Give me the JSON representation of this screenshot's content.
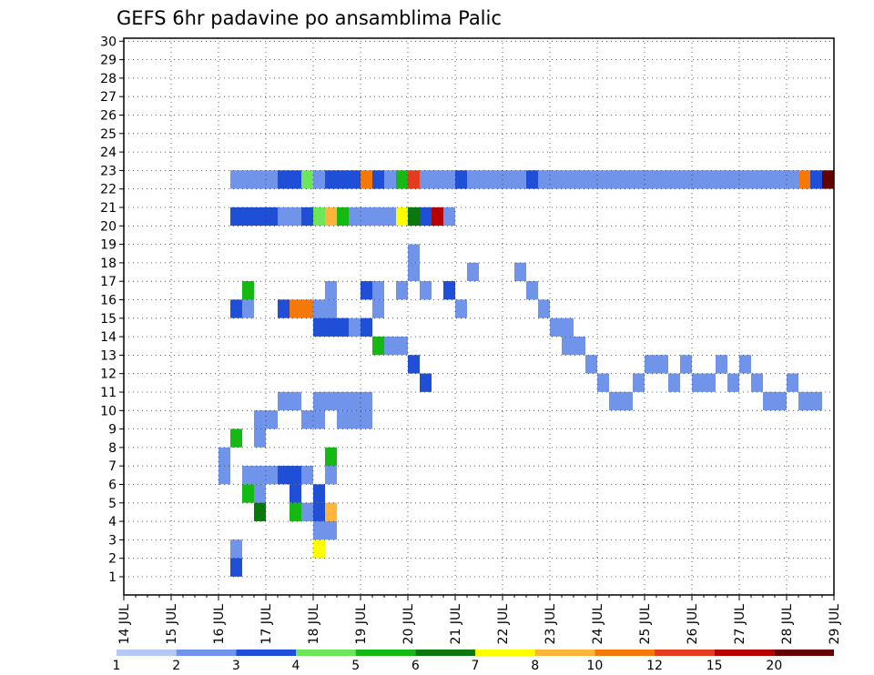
{
  "chart_data": {
    "type": "heatmap",
    "title": "GEFS 6hr padavine po ansamblima Palic",
    "x_ticks": [
      "14 JUL",
      "15 JUL",
      "16 JUL",
      "17 JUL",
      "18 JUL",
      "19 JUL",
      "20 JUL",
      "21 JUL",
      "22 JUL",
      "23 JUL",
      "24 JUL",
      "25 JUL",
      "26 JUL",
      "27 JUL",
      "28 JUL",
      "29 JUL"
    ],
    "y_ticks": [
      "1",
      "2",
      "3",
      "4",
      "5",
      "6",
      "7",
      "8",
      "9",
      "10",
      "11",
      "12",
      "13",
      "14",
      "15",
      "16",
      "17",
      "18",
      "19",
      "20",
      "21",
      "22",
      "23",
      "24",
      "25",
      "26",
      "27",
      "28",
      "29",
      "30"
    ],
    "colorbar": {
      "labels": [
        "1",
        "2",
        "3",
        "4",
        "5",
        "6",
        "7",
        "8",
        "10",
        "12",
        "15",
        "20"
      ],
      "colors": [
        "#b4c8f0",
        "#6f94ea",
        "#1f4fd6",
        "#6ee65a",
        "#14b914",
        "#0a780a",
        "#ffff00",
        "#ffb43c",
        "#f5780a",
        "#e63c1e",
        "#b40000",
        "#640000"
      ]
    },
    "x_range": [
      "14 JUL 00Z",
      "29 JUL 00Z"
    ],
    "time_steps": 60,
    "grid": true,
    "cells": [
      [
        9,
        1,
        3
      ],
      [
        9,
        2,
        2
      ],
      [
        16,
        2,
        7
      ],
      [
        16,
        3,
        2
      ],
      [
        16,
        4,
        3
      ],
      [
        17,
        3,
        2
      ],
      [
        17,
        6,
        2
      ],
      [
        17,
        7,
        5
      ],
      [
        10,
        5,
        5
      ],
      [
        11,
        5,
        2
      ],
      [
        14,
        5,
        3
      ],
      [
        14,
        4,
        5
      ],
      [
        15,
        4,
        2
      ],
      [
        17,
        4,
        8
      ],
      [
        16,
        5,
        3
      ],
      [
        11,
        4,
        6
      ],
      [
        8,
        6,
        2
      ],
      [
        8,
        7,
        2
      ],
      [
        10,
        6,
        2
      ],
      [
        11,
        6,
        2
      ],
      [
        12,
        6,
        2
      ],
      [
        13,
        6,
        3
      ],
      [
        14,
        6,
        3
      ],
      [
        15,
        6,
        2
      ],
      [
        9,
        8,
        5
      ],
      [
        11,
        8,
        2
      ],
      [
        11,
        9,
        2
      ],
      [
        12,
        9,
        2
      ],
      [
        13,
        10,
        2
      ],
      [
        14,
        10,
        2
      ],
      [
        15,
        9,
        2
      ],
      [
        16,
        9,
        2
      ],
      [
        16,
        10,
        2
      ],
      [
        17,
        10,
        2
      ],
      [
        18,
        9,
        2
      ],
      [
        18,
        10,
        2
      ],
      [
        19,
        9,
        2
      ],
      [
        19,
        10,
        2
      ],
      [
        20,
        9,
        2
      ],
      [
        20,
        10,
        2
      ],
      [
        16,
        15,
        2
      ],
      [
        17,
        15,
        2
      ],
      [
        17,
        16,
        2
      ],
      [
        20,
        16,
        3
      ],
      [
        21,
        15,
        2
      ],
      [
        21,
        16,
        2
      ],
      [
        23,
        16,
        2
      ],
      [
        24,
        17,
        2
      ],
      [
        24,
        18,
        2
      ],
      [
        25,
        16,
        2
      ],
      [
        27,
        16,
        3
      ],
      [
        28,
        15,
        2
      ],
      [
        29,
        17,
        2
      ],
      [
        33,
        17,
        2
      ],
      [
        34,
        16,
        2
      ],
      [
        35,
        15,
        2
      ],
      [
        36,
        14,
        2
      ],
      [
        37,
        13,
        2
      ],
      [
        37,
        14,
        2
      ],
      [
        38,
        13,
        2
      ],
      [
        39,
        12,
        2
      ],
      [
        40,
        11,
        2
      ],
      [
        41,
        10,
        2
      ],
      [
        42,
        10,
        2
      ],
      [
        43,
        11,
        2
      ],
      [
        44,
        12,
        2
      ],
      [
        45,
        12,
        2
      ],
      [
        46,
        11,
        2
      ],
      [
        47,
        12,
        2
      ],
      [
        48,
        11,
        2
      ],
      [
        49,
        11,
        2
      ],
      [
        50,
        12,
        2
      ],
      [
        51,
        11,
        2
      ],
      [
        52,
        12,
        2
      ],
      [
        53,
        11,
        2
      ],
      [
        54,
        10,
        2
      ],
      [
        55,
        10,
        2
      ],
      [
        56,
        11,
        2
      ],
      [
        57,
        10,
        2
      ],
      [
        58,
        10,
        2
      ],
      [
        9,
        15,
        3
      ],
      [
        10,
        15,
        2
      ],
      [
        10,
        16,
        5
      ],
      [
        13,
        15,
        3
      ],
      [
        14,
        15,
        10
      ],
      [
        15,
        15,
        10
      ],
      [
        16,
        14,
        3
      ],
      [
        17,
        14,
        3
      ],
      [
        18,
        14,
        3
      ],
      [
        19,
        14,
        2
      ],
      [
        20,
        14,
        3
      ],
      [
        21,
        13,
        5
      ],
      [
        22,
        13,
        2
      ],
      [
        23,
        13,
        2
      ],
      [
        24,
        12,
        3
      ],
      [
        25,
        11,
        3
      ],
      [
        9,
        20,
        3
      ],
      [
        10,
        20,
        3
      ],
      [
        11,
        20,
        3
      ],
      [
        12,
        20,
        3
      ],
      [
        13,
        20,
        2
      ],
      [
        14,
        20,
        2
      ],
      [
        15,
        20,
        3
      ],
      [
        16,
        20,
        4
      ],
      [
        17,
        20,
        8
      ],
      [
        18,
        20,
        5
      ],
      [
        19,
        20,
        2
      ],
      [
        20,
        20,
        2
      ],
      [
        21,
        20,
        2
      ],
      [
        22,
        20,
        2
      ],
      [
        23,
        20,
        7
      ],
      [
        24,
        20,
        6
      ],
      [
        25,
        20,
        3
      ],
      [
        26,
        20,
        15
      ],
      [
        27,
        20,
        2
      ],
      [
        9,
        22,
        2
      ],
      [
        10,
        22,
        2
      ],
      [
        11,
        22,
        2
      ],
      [
        12,
        22,
        2
      ],
      [
        13,
        22,
        3
      ],
      [
        14,
        22,
        3
      ],
      [
        15,
        22,
        4
      ],
      [
        16,
        22,
        2
      ],
      [
        17,
        22,
        3
      ],
      [
        18,
        22,
        3
      ],
      [
        19,
        22,
        3
      ],
      [
        20,
        22,
        10
      ],
      [
        21,
        22,
        3
      ],
      [
        22,
        22,
        2
      ],
      [
        23,
        22,
        5
      ],
      [
        24,
        22,
        12
      ],
      [
        25,
        22,
        2
      ],
      [
        26,
        22,
        2
      ],
      [
        27,
        22,
        2
      ],
      [
        28,
        22,
        3
      ],
      [
        29,
        22,
        2
      ],
      [
        30,
        22,
        2
      ],
      [
        31,
        22,
        2
      ],
      [
        32,
        22,
        2
      ],
      [
        33,
        22,
        2
      ],
      [
        34,
        22,
        3
      ],
      [
        35,
        22,
        2
      ],
      [
        36,
        22,
        2
      ],
      [
        37,
        22,
        2
      ],
      [
        38,
        22,
        2
      ],
      [
        39,
        22,
        2
      ],
      [
        40,
        22,
        2
      ],
      [
        41,
        22,
        2
      ],
      [
        42,
        22,
        2
      ],
      [
        43,
        22,
        2
      ],
      [
        44,
        22,
        2
      ],
      [
        45,
        22,
        2
      ],
      [
        46,
        22,
        2
      ],
      [
        47,
        22,
        2
      ],
      [
        48,
        22,
        2
      ],
      [
        49,
        22,
        2
      ],
      [
        50,
        22,
        2
      ],
      [
        51,
        22,
        2
      ],
      [
        52,
        22,
        2
      ],
      [
        53,
        22,
        2
      ],
      [
        54,
        22,
        2
      ],
      [
        55,
        22,
        2
      ],
      [
        56,
        22,
        2
      ],
      [
        57,
        22,
        10
      ],
      [
        58,
        22,
        3
      ],
      [
        59,
        22,
        20
      ]
    ]
  }
}
